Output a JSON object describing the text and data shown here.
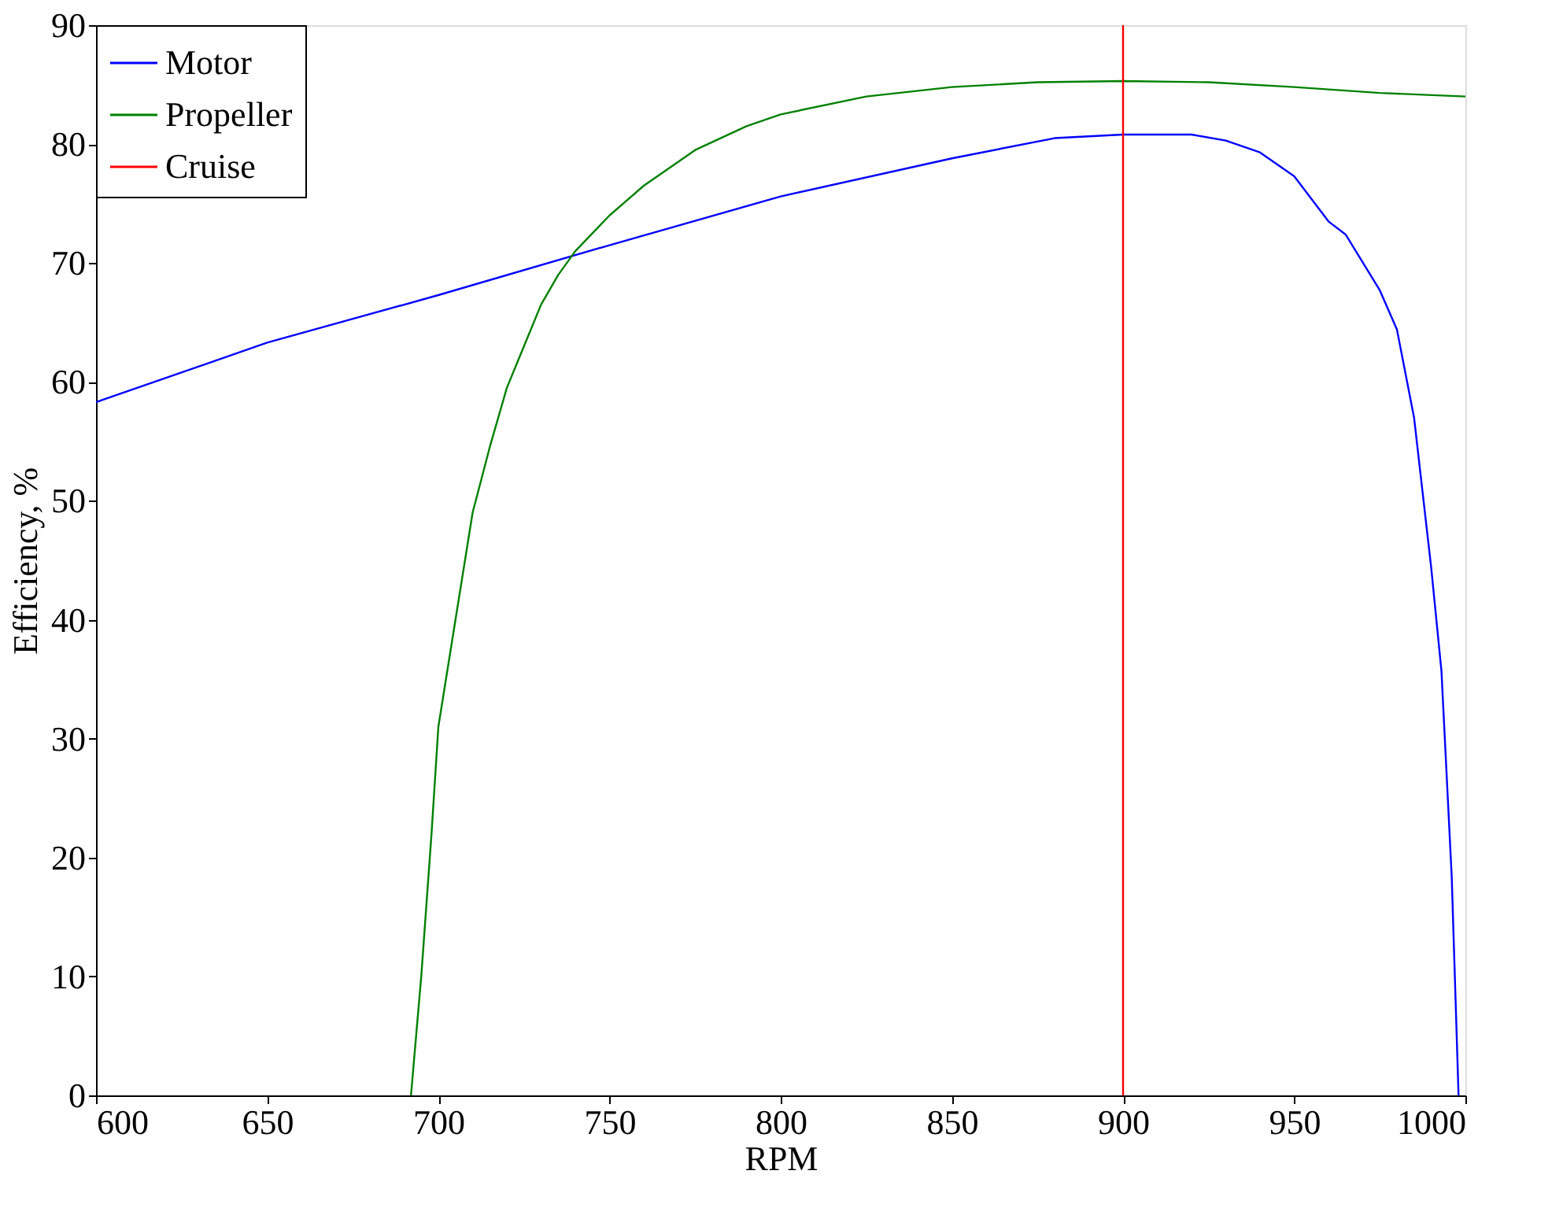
{
  "chart_data": {
    "type": "line",
    "xlabel": "RPM",
    "ylabel": "Efficiency, %",
    "xlim": [
      600,
      1000
    ],
    "xticks": [
      600,
      650,
      700,
      750,
      800,
      850,
      900,
      950,
      1000
    ],
    "ylim": [
      0,
      90
    ],
    "yticks": [
      0,
      10,
      20,
      30,
      40,
      50,
      60,
      70,
      80,
      90
    ],
    "grid": false,
    "legend": "top left",
    "line_style": "solid",
    "marker": "none",
    "series": [
      {
        "name": "Motor",
        "color": "#0000ff",
        "x": [
          600,
          650,
          700,
          750,
          800,
          850,
          880,
          900,
          920,
          930,
          940,
          950,
          960,
          965,
          975,
          980,
          985,
          990,
          993,
          996,
          998
        ],
        "values": [
          58.3,
          63.3,
          67.3,
          71.5,
          75.6,
          78.8,
          80.5,
          80.8,
          80.8,
          80.3,
          79.3,
          77.3,
          73.5,
          72.4,
          67.7,
          64.4,
          57,
          44.4,
          35.7,
          18.4,
          0
        ]
      },
      {
        "name": "Propeller",
        "color": "#008000",
        "x": [
          692,
          695,
          698,
          700,
          705,
          710,
          715,
          720,
          725,
          730,
          735,
          740,
          750,
          760,
          775,
          790,
          800,
          825,
          850,
          875,
          900,
          925,
          950,
          975,
          1000
        ],
        "values": [
          0,
          10,
          22,
          31,
          40,
          49,
          54.5,
          59.5,
          63,
          66.5,
          69,
          71,
          74,
          76.5,
          79.5,
          81.5,
          82.5,
          84,
          84.8,
          85.2,
          85.3,
          85.2,
          84.8,
          84.3,
          84.0
        ]
      },
      {
        "name": "Cruise",
        "color": "#ff0000",
        "x": [
          900,
          900
        ],
        "values": [
          0,
          90
        ]
      }
    ]
  }
}
